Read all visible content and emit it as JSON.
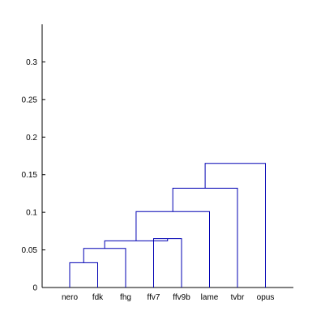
{
  "chart_data": {
    "type": "dendrogram",
    "title": "",
    "xlabel": "",
    "ylabel": "",
    "ylim": [
      0,
      0.35
    ],
    "yticks": [
      0,
      0.05,
      0.1,
      0.15,
      0.2,
      0.25,
      0.3
    ],
    "ytick_labels": [
      "0",
      "0.05",
      "0.1",
      "0.15",
      "0.2",
      "0.25",
      "0.3"
    ],
    "leaves": [
      "nero",
      "fdk",
      "fhg",
      "ffv7",
      "ffv9b",
      "lame",
      "tvbr",
      "opus"
    ],
    "grid": false,
    "line_color": "#0000b3",
    "merges": [
      {
        "left": "nero",
        "right": "fdk",
        "height": 0.033
      },
      {
        "left": "nero+fdk",
        "right": "fhg",
        "height": 0.052
      },
      {
        "left": "ffv7",
        "right": "ffv9b",
        "height": 0.065
      },
      {
        "left": "nero+fdk+fhg",
        "right": "ffv7+ffv9b",
        "height": 0.062
      },
      {
        "left": "nero..ffv9b",
        "right": "lame",
        "height": 0.101
      },
      {
        "left": "nero..lame",
        "right": "tvbr",
        "height": 0.132
      },
      {
        "left": "nero..tvbr",
        "right": "opus",
        "height": 0.165
      }
    ]
  }
}
